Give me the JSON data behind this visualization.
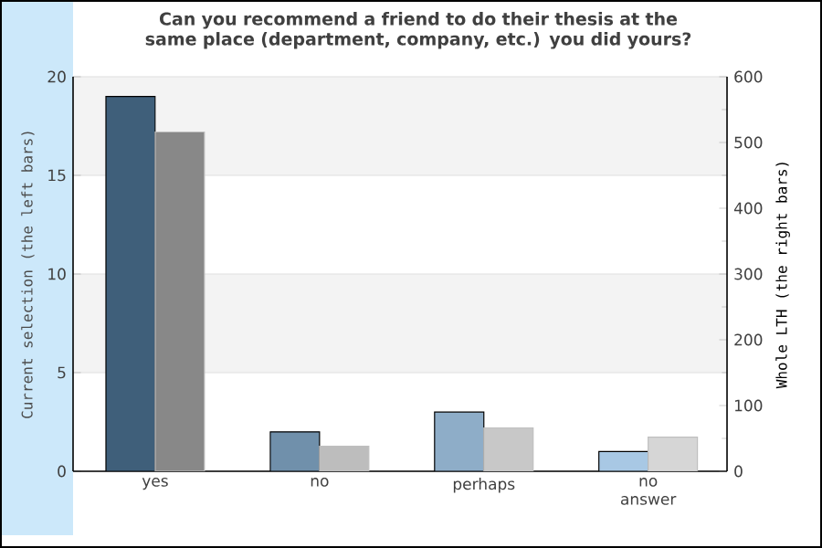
{
  "chart_data": {
    "type": "bar",
    "title": "Can you recommend a friend to do their thesis at the same place (department, company, etc.) you did yours?",
    "ylabel": "Current selection (the left bars)",
    "y2label": "Whole LTH (the right bars)",
    "categories": [
      "yes",
      "no",
      "perhaps",
      "no answer"
    ],
    "series": [
      {
        "axis": "y",
        "colors": [
          "#3f5f7a",
          "#7090ab",
          "#8eadc8",
          "#a8c8e4"
        ],
        "values": [
          19,
          2,
          3,
          1
        ]
      },
      {
        "axis": "y2",
        "colors": [
          "#888888",
          "#bdbdbd",
          "#c8c8c8",
          "#d6d6d6"
        ],
        "values": [
          516,
          38,
          66,
          52
        ]
      }
    ],
    "ylim": [
      0,
      20
    ],
    "yticks": [
      0,
      5,
      10,
      15,
      20
    ],
    "y2lim": [
      0,
      600
    ],
    "y2ticks": [
      0,
      100,
      200,
      300,
      400,
      500,
      600
    ],
    "grid": "y",
    "bands": [
      {
        "axis": "y",
        "from": 15,
        "to": 20,
        "color": "#f3f3f3"
      },
      {
        "axis": "y",
        "from": 5,
        "to": 10,
        "color": "#f3f3f3"
      }
    ]
  }
}
